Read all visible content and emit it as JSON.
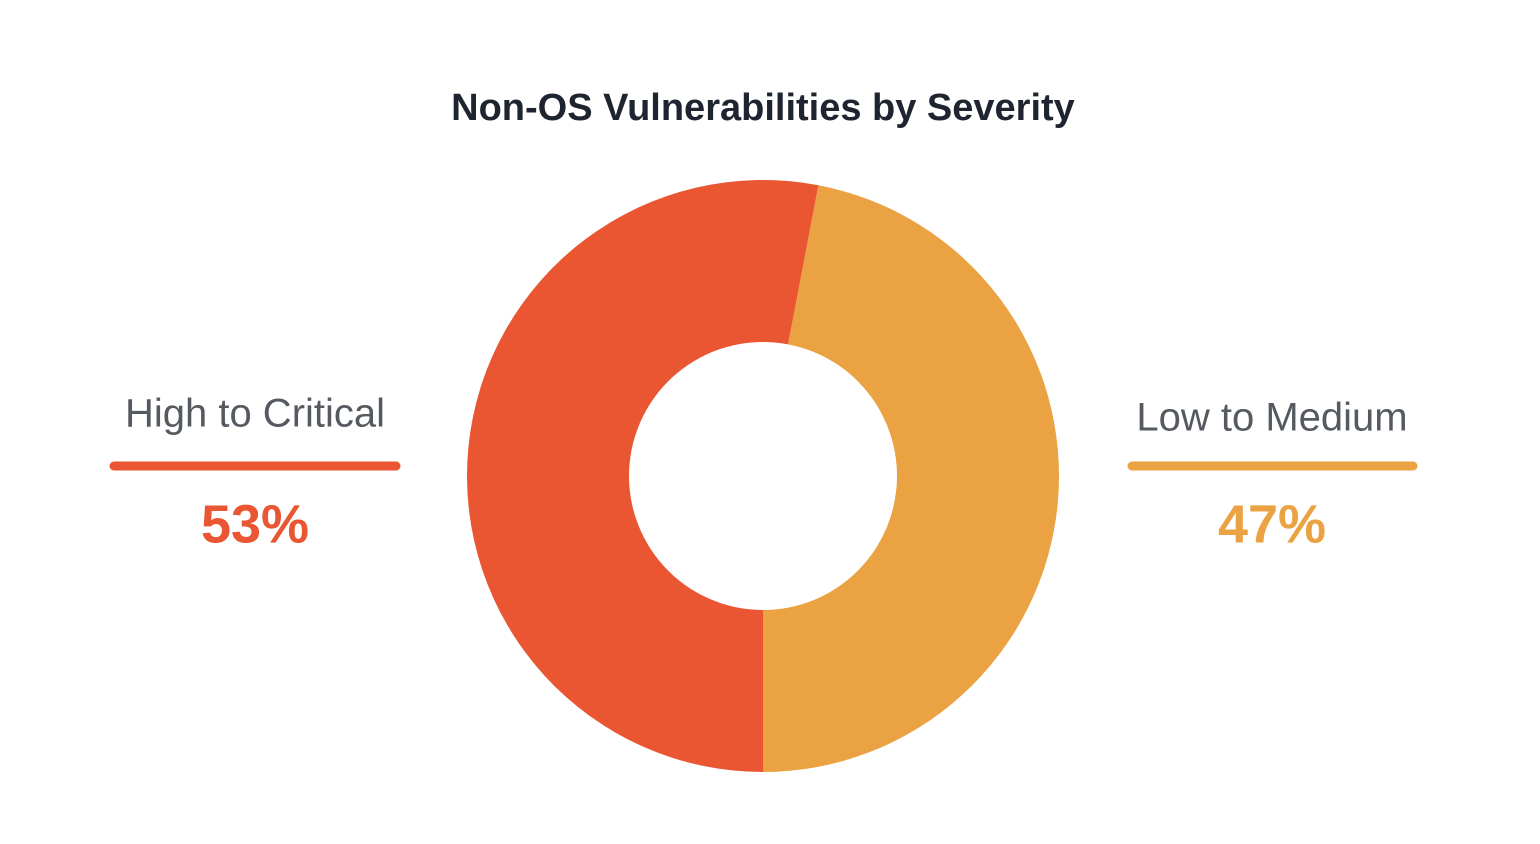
{
  "chart_data": {
    "type": "pie",
    "title": "Non-OS Vulnerabilities by Severity",
    "categories": [
      "High to Critical",
      "Low to Medium"
    ],
    "values": [
      53,
      47
    ],
    "value_labels": [
      "53%",
      "47%"
    ],
    "colors": [
      "#e95631",
      "#eba243"
    ]
  }
}
